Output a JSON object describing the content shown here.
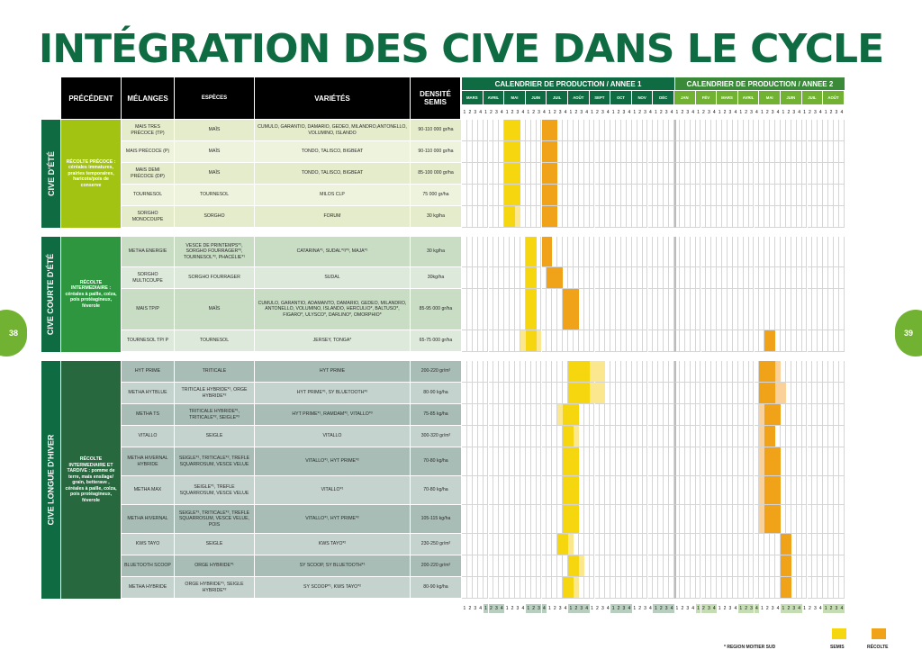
{
  "title": "INTÉGRATION DES CIVE DANS LE CYCLE",
  "page_left": "38",
  "page_right": "39",
  "headers": {
    "precedent": "PRÉCÉDENT",
    "melanges": "MÉLANGES",
    "especes": "ESPÈCES",
    "varietes": "VARIÉTÉS",
    "densite": "DENSITÉ SEMIS"
  },
  "calendar": {
    "year1_title": "CALENDRIER  DE PRODUCTION / ANNEE 1",
    "year2_title": "CALENDRIER DE PRODUCTION / ANNEE 2",
    "year1_months": [
      "MARS",
      "AVRIL",
      "MAI",
      "JUIN",
      "JUIL",
      "AOÛT",
      "SEPT",
      "OCT",
      "NOV",
      "DÉC"
    ],
    "year2_months": [
      "JAN",
      "FÉV",
      "MARS",
      "AVRIL",
      "MAI",
      "JUIN",
      "JUIL",
      "AOÛT"
    ],
    "week_labels": [
      "1",
      "2",
      "3",
      "4"
    ]
  },
  "colors": {
    "title": "#0f6b41",
    "semis": "#f5d60f",
    "recolte": "#f0a218",
    "semis_light": "#fbe88e",
    "recolte_light": "#fbd19a",
    "year1_header": "#0f6b41",
    "year2_header": "#3a8a3a"
  },
  "sections": [
    {
      "label": "CIVE D'ÉTÉ",
      "precedent": "RÉCOLTE PRÉCOCE : céréales immatures, prairies temporaires, haricots/pois de conserve",
      "rows": [
        {
          "melange": "MAIS TRES PRÉCOCE (TP)",
          "espece": "MAÏS",
          "varietes": "CUMULO, GARANTIO, DAMARIO, GEDEO, MILANDRO,ANTONELLO, VOLUMINO, ISLANDO",
          "densite": "90-110 000 gr/ha",
          "bars": [
            [
              8,
              11,
              "s"
            ],
            [
              15,
              18,
              "r"
            ]
          ]
        },
        {
          "melange": "MAIS PRÉCOCE (P)",
          "espece": "MAÏS",
          "varietes": "TONDO, TALISCO, BIGBEAT",
          "densite": "90-110 000 gr/ha",
          "bars": [
            [
              8,
              11,
              "s"
            ],
            [
              15,
              18,
              "r"
            ]
          ]
        },
        {
          "melange": "MAIS DEMI PRÉCOCE (DP)",
          "espece": "MAÏS",
          "varietes": "TONDO, TALISCO, BIGBEAT",
          "densite": "85-100 000 gr/ha",
          "bars": [
            [
              8,
              11,
              "s"
            ],
            [
              15,
              18,
              "r"
            ]
          ]
        },
        {
          "melange": "TOURNESOL",
          "espece": "TOURNESOL",
          "varietes": "MILOS CLP",
          "densite": "75 000 gr/ha",
          "bars": [
            [
              8,
              11,
              "s"
            ],
            [
              15,
              18,
              "r"
            ]
          ]
        },
        {
          "melange": "SORGHO MONOCOUPE",
          "espece": "SORGHO",
          "varietes": "FORUM",
          "densite": "30 kg/ha",
          "bars": [
            [
              8,
              10,
              "s"
            ],
            [
              10,
              11,
              "sl"
            ],
            [
              15,
              18,
              "r"
            ]
          ]
        }
      ]
    },
    {
      "label": "CIVE COURTE D'ÉTÉ",
      "precedent": "RÉCOLTE INTERMEDIAIRE : céréales à paille, colza, pois protéagineux, féverole",
      "rows": [
        {
          "melange": "METHA ENERGIE",
          "espece": "VESCE DE PRINTEMPS*¹, SORGHO FOURRAGER*³, TOURNESOL*², PHACÉLIE*¹",
          "varietes": "CATARINA*¹, SUDAL*²/*³, MAJA*¹",
          "densite": "30 kg/ha",
          "bars": [
            [
              12,
              14,
              "s"
            ],
            [
              15,
              17,
              "r"
            ]
          ]
        },
        {
          "melange": "SORGHO MULTICOUPE",
          "espece": "SORGHO FOURRAGER",
          "varietes": "SUDAL",
          "densite": "30kg/ha",
          "bars": [
            [
              12,
              14,
              "s"
            ],
            [
              16,
              19,
              "r"
            ]
          ]
        },
        {
          "melange": "MAIS TP/P",
          "espece": "MAÏS",
          "varietes": "CUMULO, GARANTIO, ADAMANTO, DAMARIO, GEDEO, MILANDRO, ANTONELLO, VOLUMINO, ISLANDO, HERCULIO*, BALTUSO*, FIGARO*, ULYSCO*, DARLINO*, OMORPHIO*",
          "densite": "85-95 000 gr/ha",
          "bars": [
            [
              12,
              14,
              "s"
            ],
            [
              19,
              22,
              "r"
            ]
          ]
        },
        {
          "melange": "TOURNESOL TP/ P",
          "espece": "TOURNESOL",
          "varietes": "JERSEY, TONGA*",
          "densite": "65-75 000 gr/ha",
          "bars": [
            [
              11,
              12,
              "sl"
            ],
            [
              12,
              14,
              "s"
            ],
            [
              14,
              15,
              "sl"
            ],
            [
              57,
              59,
              "r"
            ]
          ]
        }
      ]
    },
    {
      "label": "CIVE LONGUE D'HIVER",
      "precedent": "RÉCOLTE INTERMEDIAIRE ET TARDIVE : pomme de terre, mais ensilage/ grain, betterave , céréales à paille, colza, pois protéagineux, féverole",
      "rows": [
        {
          "melange": "HYT PRIME",
          "espece": "TRITICALE",
          "varietes": "HYT PRIME",
          "densite": "200-220 gr/m²",
          "bars": [
            [
              20,
              24,
              "s"
            ],
            [
              24,
              27,
              "sl"
            ],
            [
              56,
              59,
              "r"
            ],
            [
              59,
              60,
              "rl"
            ]
          ]
        },
        {
          "melange": "METHA HYTBLUE",
          "espece": "TRITICALE HYBRIDE*¹, ORGE HYBRIDE*²",
          "varietes": "HYT PRIME*¹, SY BLUETOOTH*²",
          "densite": "80-90 kg/ha",
          "bars": [
            [
              20,
              24,
              "s"
            ],
            [
              24,
              27,
              "sl"
            ],
            [
              56,
              59,
              "r"
            ],
            [
              59,
              61,
              "rl"
            ]
          ]
        },
        {
          "melange": "METHA TS",
          "espece": "TRITICALE HYBRIDE*¹, TRITICALE*², SEIGLE*³",
          "varietes": "HYT PRIME*¹, RAMDAM*², VITALLO*³",
          "densite": "75-85 kg/ha",
          "bars": [
            [
              18,
              19,
              "sl"
            ],
            [
              19,
              22,
              "s"
            ],
            [
              56,
              57,
              "rl"
            ],
            [
              57,
              60,
              "r"
            ]
          ]
        },
        {
          "melange": "VITALLO",
          "espece": "SEIGLE",
          "varietes": "VITALLO",
          "densite": "300-320 gr/m²",
          "bars": [
            [
              19,
              21,
              "s"
            ],
            [
              21,
              22,
              "sl"
            ],
            [
              56,
              57,
              "rl"
            ],
            [
              57,
              59,
              "r"
            ]
          ]
        },
        {
          "melange": "METHA HIVERNAL HYBRIDE",
          "espece": "SEIGLE*¹, TRITICALE*², TREFLE SQUARROSUM, VESCE VELUE",
          "varietes": "VITALLO*¹, HYT PRIME*²",
          "densite": "70-80 kg/ha",
          "bars": [
            [
              19,
              22,
              "s"
            ],
            [
              56,
              57,
              "rl"
            ],
            [
              57,
              60,
              "r"
            ]
          ]
        },
        {
          "melange": "METHA MAX",
          "espece": "SEIGLE*¹, TREFLE SQUARROSUM, VESCE VELUE",
          "varietes": "VITALLO*¹",
          "densite": "70-80 kg/ha",
          "bars": [
            [
              19,
              22,
              "s"
            ],
            [
              56,
              57,
              "rl"
            ],
            [
              57,
              60,
              "r"
            ]
          ]
        },
        {
          "melange": "METHA HIVERNAL",
          "espece": "SEIGLE*¹, TRITICALE*², TREFLE SQUARROSUM, VESCE VELUE, POIS",
          "varietes": "VITALLO*¹, HYT PRIME*²",
          "densite": "105-115 kg/ha",
          "bars": [
            [
              19,
              22,
              "s"
            ],
            [
              56,
              57,
              "rl"
            ],
            [
              57,
              60,
              "r"
            ]
          ]
        },
        {
          "melange": "KWS TAYO",
          "espece": "SEIGLE",
          "varietes": "KWS TAYO*²",
          "densite": "230-250 gr/m²",
          "bars": [
            [
              18,
              20,
              "s"
            ],
            [
              20,
              21,
              "sl"
            ],
            [
              60,
              62,
              "r"
            ]
          ]
        },
        {
          "melange": "BLUETOOTH SCOOP",
          "espece": "ORGE HYBRIDE*¹",
          "varietes": "SY SCOOP, SY BLUETOOTH*¹",
          "densite": "200-220 gr/m²",
          "bars": [
            [
              20,
              22,
              "s"
            ],
            [
              22,
              23,
              "sl"
            ],
            [
              60,
              62,
              "r"
            ]
          ]
        },
        {
          "melange": "METHA HYBRIDE",
          "espece": "ORGE HYBRIDE*¹, SEIGLE HYBRIDE*²",
          "varietes": "SY SCOOP*¹, KWS TAYO*²",
          "densite": "80-90 kg/ha",
          "bars": [
            [
              19,
              21,
              "s"
            ],
            [
              21,
              22,
              "sl"
            ],
            [
              60,
              62,
              "r"
            ]
          ]
        }
      ]
    }
  ],
  "legend": {
    "note": "* REGION MOITIER SUD",
    "semis": "SEMIS",
    "recolte": "RÉCOLTE"
  }
}
